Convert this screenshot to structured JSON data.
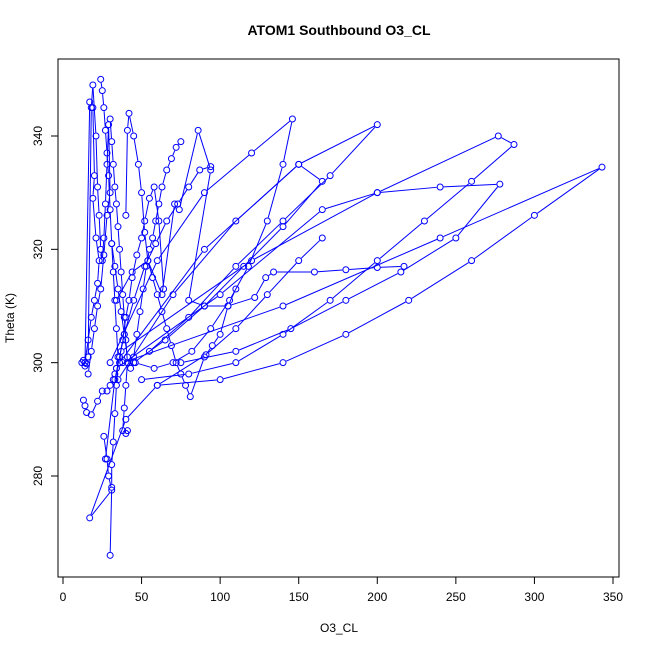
{
  "chart_data": {
    "type": "line",
    "title": "ATOM1 Southbound O3_CL",
    "xlabel": "O3_CL",
    "ylabel": "Theta (K)",
    "xlim": [
      0,
      350
    ],
    "ylim": [
      262,
      352
    ],
    "x_ticks": [
      0,
      50,
      100,
      150,
      200,
      250,
      300,
      350
    ],
    "y_ticks": [
      280,
      300,
      320,
      340
    ],
    "grid": false,
    "legend": "none",
    "series": [
      {
        "color": "#0000ff",
        "marker": "open-circle",
        "points": [
          [
            12,
            300
          ],
          [
            13,
            300.4
          ],
          [
            14,
            299.4
          ],
          [
            15,
            299.8
          ],
          [
            16,
            301
          ],
          [
            18,
            345
          ],
          [
            19,
            349
          ],
          [
            21,
            340
          ],
          [
            22,
            331
          ],
          [
            23,
            326
          ],
          [
            24,
            320
          ],
          [
            25,
            318
          ],
          [
            26,
            322
          ],
          [
            27,
            328
          ],
          [
            28,
            335
          ],
          [
            29,
            342
          ],
          [
            30,
            330
          ],
          [
            28,
            326
          ],
          [
            26,
            319
          ],
          [
            24,
            313
          ],
          [
            22,
            310
          ],
          [
            20,
            306
          ],
          [
            18,
            302
          ],
          [
            16,
            298
          ]
        ]
      },
      {
        "color": "#0000ff",
        "marker": "open-circle",
        "points": [
          [
            14,
            300
          ],
          [
            17,
            346
          ],
          [
            19,
            345
          ],
          [
            20,
            333
          ],
          [
            19,
            329
          ],
          [
            21,
            322
          ],
          [
            23,
            318
          ],
          [
            22,
            314
          ],
          [
            20,
            311
          ],
          [
            18,
            308
          ],
          [
            16,
            304
          ],
          [
            14,
            300
          ]
        ]
      },
      {
        "color": "#0000ff",
        "marker": "open-circle",
        "points": [
          [
            13,
            293.4
          ],
          [
            14,
            292.4
          ],
          [
            15,
            291.2
          ],
          [
            18,
            290.8
          ],
          [
            22,
            293.2
          ],
          [
            25,
            295
          ],
          [
            28,
            295
          ],
          [
            30,
            296
          ],
          [
            32,
            297
          ],
          [
            33,
            298
          ],
          [
            34,
            299
          ],
          [
            36,
            301
          ],
          [
            38,
            304
          ],
          [
            40,
            308
          ],
          [
            42,
            311
          ],
          [
            44,
            315
          ],
          [
            47,
            319
          ],
          [
            50,
            322
          ],
          [
            52,
            325
          ],
          [
            55,
            329
          ],
          [
            58,
            331
          ],
          [
            61,
            325
          ],
          [
            64,
            313
          ]
        ]
      },
      {
        "color": "#0000ff",
        "marker": "open-circle",
        "points": [
          [
            24,
            350
          ],
          [
            25,
            348
          ],
          [
            26,
            345
          ],
          [
            27,
            341
          ],
          [
            28,
            337
          ],
          [
            29,
            333
          ],
          [
            30,
            327
          ],
          [
            31,
            321
          ],
          [
            32,
            316
          ],
          [
            33,
            311
          ],
          [
            34,
            306
          ],
          [
            35,
            301
          ],
          [
            34,
            296
          ],
          [
            33,
            291
          ],
          [
            32,
            286
          ],
          [
            31,
            282
          ],
          [
            31,
            278
          ],
          [
            30,
            266
          ]
        ]
      },
      {
        "color": "#0000ff",
        "marker": "open-circle",
        "points": [
          [
            30,
            343
          ],
          [
            31,
            339
          ],
          [
            32,
            335
          ],
          [
            33,
            331
          ],
          [
            34,
            328
          ],
          [
            35,
            324
          ],
          [
            36,
            320
          ],
          [
            37,
            316
          ],
          [
            38,
            312
          ],
          [
            39,
            308
          ],
          [
            40,
            304
          ],
          [
            41,
            300
          ],
          [
            40,
            296
          ],
          [
            39,
            292
          ],
          [
            38,
            288
          ],
          [
            40,
            287.5
          ],
          [
            41,
            288
          ]
        ]
      },
      {
        "color": "#0000ff",
        "marker": "open-circle",
        "points": [
          [
            40,
            326
          ],
          [
            41,
            341
          ],
          [
            42,
            344
          ],
          [
            45,
            340
          ],
          [
            48,
            335
          ],
          [
            50,
            330
          ],
          [
            52,
            323
          ],
          [
            54,
            318
          ],
          [
            57,
            315
          ],
          [
            60,
            312
          ],
          [
            63,
            309
          ],
          [
            66,
            306
          ],
          [
            69,
            303
          ],
          [
            72,
            300
          ],
          [
            75,
            298
          ],
          [
            78,
            296
          ],
          [
            81,
            294
          ],
          [
            90,
            301
          ],
          [
            95,
            303
          ],
          [
            100,
            305
          ],
          [
            105,
            310
          ],
          [
            110,
            313
          ]
        ]
      },
      {
        "color": "#0000ff",
        "marker": "open-circle",
        "points": [
          [
            34,
            311
          ],
          [
            44,
            316
          ],
          [
            54,
            318
          ],
          [
            63,
            312
          ],
          [
            71,
            328
          ],
          [
            74,
            327
          ],
          [
            86,
            341
          ],
          [
            94,
            334
          ],
          [
            80,
            311
          ],
          [
            90,
            310
          ],
          [
            105,
            310
          ],
          [
            122,
            311.5
          ],
          [
            129,
            315
          ],
          [
            134,
            316
          ],
          [
            160,
            316
          ],
          [
            180,
            316.4
          ],
          [
            200,
            316.8
          ],
          [
            217,
            317
          ]
        ]
      },
      {
        "color": "#0000ff",
        "marker": "open-circle",
        "points": [
          [
            30,
            300
          ],
          [
            60,
            318
          ],
          [
            90,
            330
          ],
          [
            120,
            337
          ],
          [
            146,
            343
          ],
          [
            140,
            335
          ],
          [
            130,
            325
          ],
          [
            118,
            317
          ],
          [
            106,
            311
          ],
          [
            94,
            306
          ],
          [
            82,
            302
          ],
          [
            70,
            300
          ],
          [
            58,
            299
          ],
          [
            46,
            300
          ]
        ]
      },
      {
        "color": "#0000ff",
        "marker": "open-circle",
        "points": [
          [
            35,
            297
          ],
          [
            70,
            312
          ],
          [
            110,
            325
          ],
          [
            150,
            335
          ],
          [
            165,
            332
          ],
          [
            140,
            324
          ],
          [
            115,
            317
          ],
          [
            90,
            310
          ],
          [
            65,
            304
          ],
          [
            45,
            300
          ]
        ]
      },
      {
        "color": "#0000ff",
        "marker": "open-circle",
        "points": [
          [
            36,
            300
          ],
          [
            90,
            320
          ],
          [
            150,
            335
          ],
          [
            200,
            342
          ],
          [
            170,
            333
          ],
          [
            140,
            325
          ],
          [
            110,
            317
          ],
          [
            80,
            308
          ],
          [
            55,
            302
          ]
        ]
      },
      {
        "color": "#0000ff",
        "marker": "open-circle",
        "points": [
          [
            34,
            299
          ],
          [
            100,
            312
          ],
          [
            165,
            327
          ],
          [
            200,
            330
          ],
          [
            240,
            331
          ],
          [
            278,
            331.5
          ],
          [
            250,
            322
          ],
          [
            215,
            316
          ],
          [
            180,
            311
          ],
          [
            145,
            306
          ],
          [
            110,
            302
          ],
          [
            75,
            300
          ]
        ]
      },
      {
        "color": "#0000ff",
        "marker": "open-circle",
        "points": [
          [
            37,
            302
          ],
          [
            120,
            318
          ],
          [
            200,
            330
          ],
          [
            277,
            340
          ],
          [
            287,
            338.5
          ],
          [
            260,
            332
          ],
          [
            230,
            325
          ],
          [
            200,
            318
          ],
          [
            170,
            311
          ],
          [
            140,
            305
          ],
          [
            110,
            300
          ],
          [
            80,
            298
          ],
          [
            50,
            297
          ]
        ]
      },
      {
        "color": "#0000ff",
        "marker": "open-circle",
        "points": [
          [
            38,
            300
          ],
          [
            140,
            310
          ],
          [
            240,
            322
          ],
          [
            343,
            334.5
          ],
          [
            300,
            326
          ],
          [
            260,
            318
          ],
          [
            220,
            311
          ],
          [
            180,
            305
          ],
          [
            140,
            300
          ],
          [
            100,
            297
          ],
          [
            60,
            296
          ]
        ]
      },
      {
        "color": "#0000ff",
        "marker": "open-circle",
        "points": [
          [
            26,
            287
          ],
          [
            28,
            283
          ],
          [
            29,
            280
          ],
          [
            31,
            277.5
          ],
          [
            17,
            272.6
          ],
          [
            40,
            290
          ],
          [
            60,
            296
          ],
          [
            91,
            301.4
          ],
          [
            110,
            306
          ],
          [
            130,
            312
          ],
          [
            150,
            318
          ],
          [
            165,
            322
          ]
        ]
      },
      {
        "color": "#0000ff",
        "marker": "open-circle",
        "points": [
          [
            31,
            321
          ],
          [
            33,
            317
          ],
          [
            35,
            313
          ],
          [
            37,
            309
          ],
          [
            39,
            305
          ],
          [
            41,
            301
          ],
          [
            43,
            299
          ],
          [
            45,
            301
          ],
          [
            47,
            305
          ],
          [
            49,
            309
          ],
          [
            51,
            313
          ],
          [
            53,
            317
          ],
          [
            55,
            320
          ],
          [
            57,
            322
          ],
          [
            59,
            325
          ],
          [
            61,
            328
          ],
          [
            63,
            331
          ],
          [
            66,
            334
          ],
          [
            69,
            336
          ],
          [
            72,
            338
          ],
          [
            75,
            339
          ]
        ]
      },
      {
        "color": "#0000ff",
        "marker": "open-circle",
        "points": [
          [
            27,
            283
          ],
          [
            33,
            297
          ],
          [
            39,
            305
          ],
          [
            45,
            311
          ],
          [
            52,
            317
          ],
          [
            59,
            321
          ],
          [
            66,
            325
          ],
          [
            73,
            328
          ],
          [
            80,
            331
          ],
          [
            87,
            334
          ],
          [
            94,
            334.6
          ]
        ]
      }
    ]
  }
}
